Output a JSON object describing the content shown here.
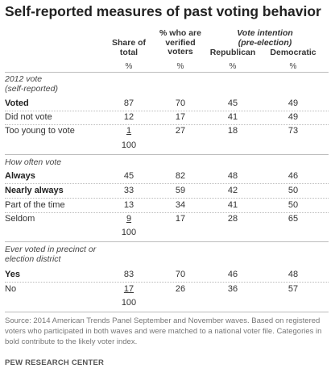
{
  "title": "Self-reported measures of past voting behavior",
  "headers": {
    "share_line1": "Share of",
    "share_line2": "total",
    "verified_line1": "% who are",
    "verified_line2": "verified",
    "verified_line3": "voters",
    "intention_line1": "Vote intention",
    "intention_line2": "(pre-election)",
    "republican": "Republican",
    "democratic": "Democratic",
    "pct": "%"
  },
  "sections": [
    {
      "label_line1": "2012 vote",
      "label_line2": "(self-reported)",
      "rows": [
        {
          "label": "Voted",
          "share": "87",
          "verified": "70",
          "rep": "45",
          "dem": "49"
        },
        {
          "label": "Did not vote",
          "share": "12",
          "verified": "17",
          "rep": "41",
          "dem": "49"
        },
        {
          "label": "Too young to vote",
          "share": "1",
          "verified": "27",
          "rep": "18",
          "dem": "73"
        }
      ],
      "total": "100"
    },
    {
      "label_line1": "How often vote",
      "rows": [
        {
          "label": "Always",
          "share": "45",
          "verified": "82",
          "rep": "48",
          "dem": "46"
        },
        {
          "label": "Nearly always",
          "share": "33",
          "verified": "59",
          "rep": "42",
          "dem": "50"
        },
        {
          "label": "Part of the time",
          "share": "13",
          "verified": "34",
          "rep": "41",
          "dem": "50"
        },
        {
          "label": "Seldom",
          "share": "9",
          "verified": "17",
          "rep": "28",
          "dem": "65"
        }
      ],
      "total": "100"
    },
    {
      "label_line1": "Ever voted in precinct or",
      "label_line2": "election district",
      "rows": [
        {
          "label": "Yes",
          "share": "83",
          "verified": "70",
          "rep": "46",
          "dem": "48"
        },
        {
          "label": "No",
          "share": "17",
          "verified": "26",
          "rep": "36",
          "dem": "57"
        }
      ],
      "total": "100"
    }
  ],
  "source": "Source: 2014 American Trends Panel September and November waves. Based on registered voters who participated in both waves and were matched to a national voter file. Categories in bold contribute to the likely voter index.",
  "brand": "PEW RESEARCH CENTER"
}
